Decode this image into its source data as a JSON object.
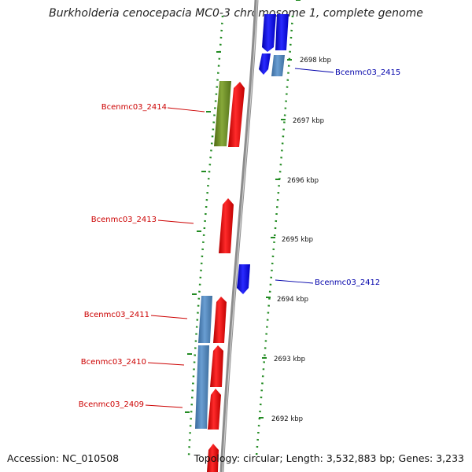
{
  "title": "Burkholderia cenocepacia MC0-3 chromosome 1, complete genome",
  "footer": {
    "accession": "Accession: NC_010508",
    "summary": "Topology: circular; Length: 3,532,883 bp; Genes: 3,233"
  },
  "colors": {
    "forward_gene": "#ff0000",
    "reverse_gene": "#0000ff",
    "cds_forward": "#4f86bf",
    "cds_other": "#6b8e23",
    "tick": "#228b22",
    "backbone": "#888888",
    "label_forward": "#cc0000",
    "label_reverse": "#0000aa"
  },
  "scale_ticks": [
    {
      "label": "2698 kbp"
    },
    {
      "label": "2697 kbp"
    },
    {
      "label": "2696 kbp"
    },
    {
      "label": "2695 kbp"
    },
    {
      "label": "2694 kbp"
    },
    {
      "label": "2693 kbp"
    },
    {
      "label": "2692 kbp"
    }
  ],
  "gene_labels": [
    {
      "name": "Bcenmc03_2415",
      "strand": "reverse"
    },
    {
      "name": "Bcenmc03_2414",
      "strand": "forward"
    },
    {
      "name": "Bcenmc03_2413",
      "strand": "forward"
    },
    {
      "name": "Bcenmc03_2412",
      "strand": "reverse"
    },
    {
      "name": "Bcenmc03_2411",
      "strand": "forward"
    },
    {
      "name": "Bcenmc03_2410",
      "strand": "forward"
    },
    {
      "name": "Bcenmc03_2409",
      "strand": "forward"
    }
  ]
}
